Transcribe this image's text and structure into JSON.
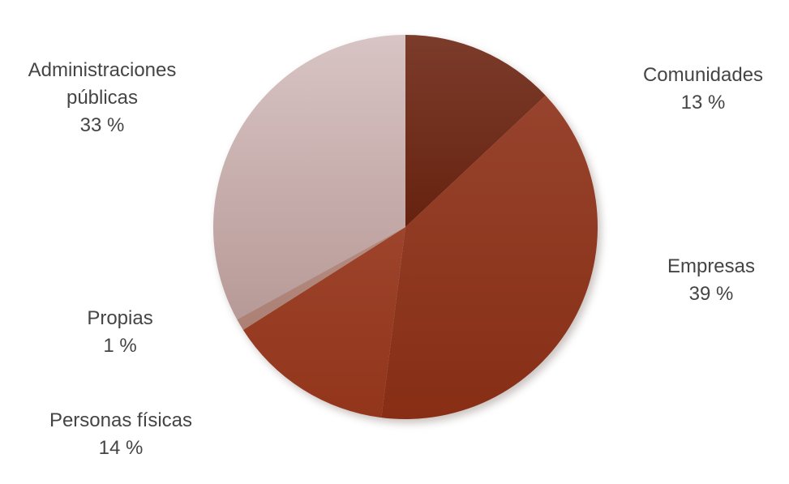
{
  "chart_data": {
    "type": "pie",
    "title": "",
    "legend": "none",
    "labels_position": "outside",
    "labels_color": "#454545",
    "start_angle_deg": 0,
    "direction": "clockwise",
    "center": [
      500,
      280
    ],
    "radius": 237,
    "slices": [
      {
        "id": "comunidades",
        "label": "Comunidades",
        "pct_label": "13 %",
        "value": 13,
        "color_top": "#7C3C2B",
        "color_bottom": "#66220F"
      },
      {
        "id": "empresas",
        "label": "Empresas",
        "pct_label": "39 %",
        "value": 39,
        "color_top": "#97432D",
        "color_bottom": "#872E15"
      },
      {
        "id": "personas-fisicas",
        "label": "Personas físicas",
        "pct_label": "14 %",
        "value": 14,
        "color_top": "#9D442C",
        "color_bottom": "#92351B"
      },
      {
        "id": "propias",
        "label": "Propias",
        "pct_label": "1 %",
        "value": 1,
        "color_top": "#B68C81",
        "color_bottom": "#AC8074"
      },
      {
        "id": "administraciones-publicas",
        "label": "Administraciones públicas",
        "pct_label": "33 %",
        "value": 33,
        "color_top": "#D8C4C4",
        "color_bottom": "#B79A97"
      }
    ]
  }
}
